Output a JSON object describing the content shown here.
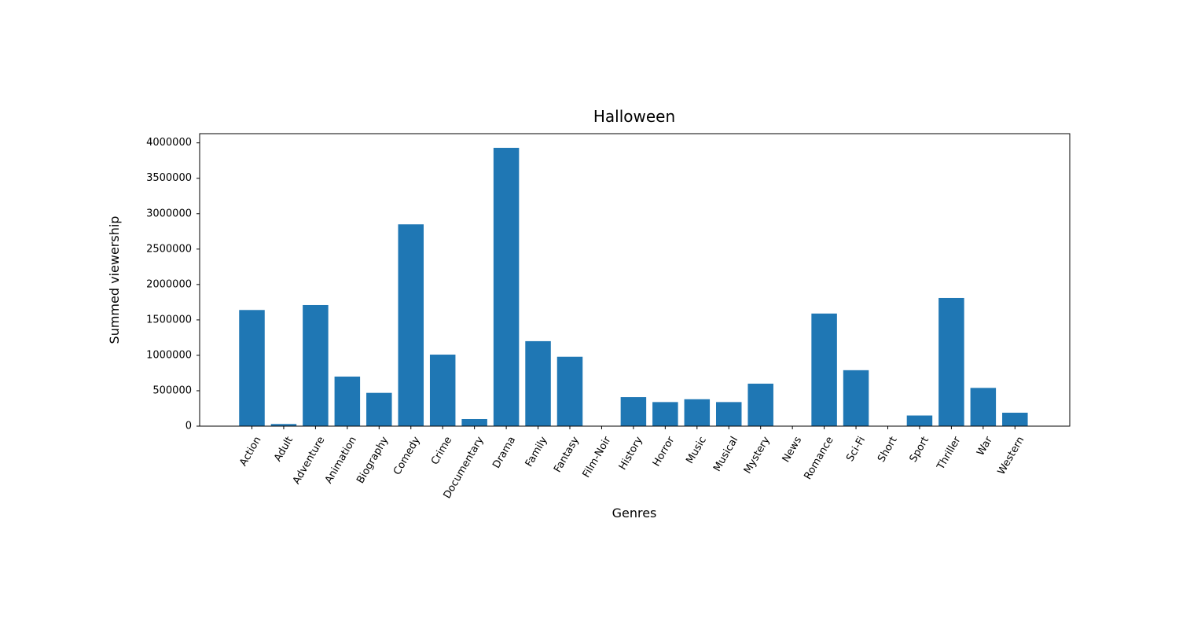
{
  "chart_data": {
    "type": "bar",
    "title": "Halloween",
    "xlabel": "Genres",
    "ylabel": "Summed viewership",
    "categories": [
      "Action",
      "Adult",
      "Adventure",
      "Animation",
      "Biography",
      "Comedy",
      "Crime",
      "Documentary",
      "Drama",
      "Family",
      "Fantasy",
      "Film-Noir",
      "History",
      "Horror",
      "Music",
      "Musical",
      "Mystery",
      "News",
      "Romance",
      "Sci-Fi",
      "Short",
      "Sport",
      "Thriller",
      "War",
      "Western"
    ],
    "values": [
      1640000,
      30000,
      1710000,
      700000,
      470000,
      2850000,
      1010000,
      100000,
      3930000,
      1200000,
      980000,
      0,
      410000,
      340000,
      380000,
      340000,
      600000,
      0,
      1590000,
      790000,
      0,
      150000,
      1810000,
      540000,
      190000
    ],
    "ylim": [
      0,
      4130000
    ],
    "yticks": [
      0,
      500000,
      1000000,
      1500000,
      2000000,
      2500000,
      3000000,
      3500000,
      4000000
    ],
    "ytick_labels": [
      "0",
      "500000",
      "1000000",
      "1500000",
      "2000000",
      "2500000",
      "3000000",
      "3500000",
      "4000000"
    ],
    "bar_color": "#1f77b4",
    "grid": false,
    "legend": "none"
  }
}
